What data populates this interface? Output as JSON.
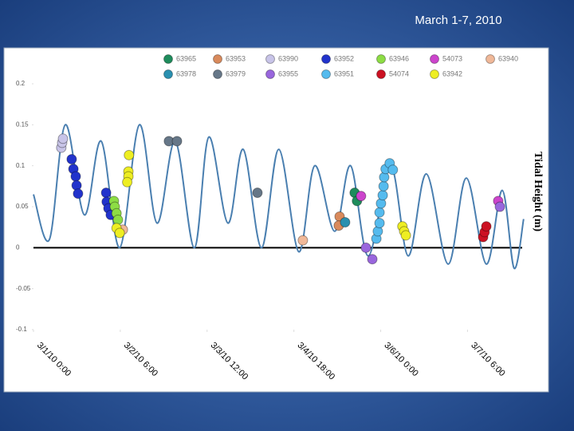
{
  "chart_data": {
    "type": "scatter",
    "title": "March 1-7, 2010",
    "y_label": "Tidal Height (m)",
    "xlim": [
      0,
      170
    ],
    "xticks": [
      {
        "value": 0,
        "label": "3/1/10 0:00"
      },
      {
        "value": 30,
        "label": "3/2/10 6:00"
      },
      {
        "value": 60,
        "label": "3/3/10 12:00"
      },
      {
        "value": 90,
        "label": "3/4/10 18:00"
      },
      {
        "value": 120,
        "label": "3/6/10 0:00"
      },
      {
        "value": 150,
        "label": "3/7/10 6:00"
      }
    ],
    "ylim": [
      -0.1,
      0.2
    ],
    "yticks": [
      0.2,
      0.15,
      0.1,
      0.05,
      0,
      -0.05,
      -0.1
    ],
    "tide": {
      "color": "#4a7fb0",
      "x": [
        0,
        5.5,
        11,
        17.6,
        23.4,
        29.8,
        36.6,
        42.7,
        49,
        55.6,
        60.6,
        67.2,
        72.5,
        78.8,
        84.8,
        91.7,
        97.2,
        104.1,
        109.6,
        115.7,
        123.4,
        129.5,
        135.8,
        143.3,
        149.6,
        156.5,
        162,
        166.1,
        169.4
      ],
      "values": [
        0.065,
        0.01,
        0.15,
        0.04,
        0.13,
        0.0,
        0.15,
        0.03,
        0.13,
        0.0,
        0.135,
        0.03,
        0.12,
        0.0,
        0.12,
        -0.005,
        0.1,
        0.02,
        0.1,
        -0.01,
        0.1,
        -0.01,
        0.09,
        -0.02,
        0.085,
        -0.02,
        0.07,
        -0.025,
        0.035
      ]
    },
    "series": [
      {
        "name": "63965",
        "color": "#1e8c5c",
        "x": [
          111,
          111.8
        ],
        "values": [
          0.067,
          0.057
        ]
      },
      {
        "name": "63953",
        "color": "#d98a5c",
        "x": [
          105.8,
          105.5
        ],
        "values": [
          0.038,
          0.027
        ]
      },
      {
        "name": "63990",
        "color": "#c8c4e8",
        "x": [
          9.6,
          9.9,
          10.2
        ],
        "values": [
          0.122,
          0.128,
          0.133
        ]
      },
      {
        "name": "63952",
        "color": "#2233cc",
        "x": [
          13.2,
          13.8,
          14.6,
          14.9,
          15.4,
          25.1,
          25.3,
          25.9,
          26.7
        ],
        "values": [
          0.108,
          0.096,
          0.087,
          0.076,
          0.066,
          0.067,
          0.056,
          0.048,
          0.04
        ]
      },
      {
        "name": "63946",
        "color": "#8ddd44",
        "x": [
          27.8,
          28.1,
          28.7,
          29.2
        ],
        "values": [
          0.057,
          0.05,
          0.042,
          0.034
        ]
      },
      {
        "name": "54073",
        "color": "#cc44cc",
        "x": [
          113.2,
          160.6
        ],
        "values": [
          0.063,
          0.057
        ]
      },
      {
        "name": "63940",
        "color": "#f0b898",
        "x": [
          30.9,
          93.1
        ],
        "values": [
          0.022,
          0.009
        ]
      },
      {
        "name": "63978",
        "color": "#2a90b0",
        "x": [
          107.7
        ],
        "values": [
          0.031
        ]
      },
      {
        "name": "63979",
        "color": "#667788",
        "x": [
          46.8,
          49.6,
          77.4
        ],
        "values": [
          0.13,
          0.13,
          0.067
        ]
      },
      {
        "name": "63955",
        "color": "#9966dd",
        "x": [
          114.9,
          117.1,
          161.2
        ],
        "values": [
          0.0,
          -0.014,
          0.05
        ]
      },
      {
        "name": "63951",
        "color": "#55bbee",
        "x": [
          118.5,
          119,
          119.6,
          119.6,
          120.1,
          120.7,
          121,
          121.2,
          121.7,
          123.1,
          124.2
        ],
        "values": [
          0.011,
          0.02,
          0.03,
          0.043,
          0.054,
          0.064,
          0.075,
          0.086,
          0.096,
          0.103,
          0.095
        ]
      },
      {
        "name": "54074",
        "color": "#cc1122",
        "x": [
          155.4,
          155.9,
          156.5
        ],
        "values": [
          0.013,
          0.019,
          0.026
        ]
      },
      {
        "name": "63942",
        "color": "#eeee22",
        "x": [
          28.7,
          29.8,
          33,
          32.8,
          32.8,
          32.4,
          127.5,
          128.1,
          128.7
        ],
        "values": [
          0.024,
          0.018,
          0.113,
          0.093,
          0.087,
          0.08,
          0.026,
          0.02,
          0.015
        ]
      }
    ]
  }
}
